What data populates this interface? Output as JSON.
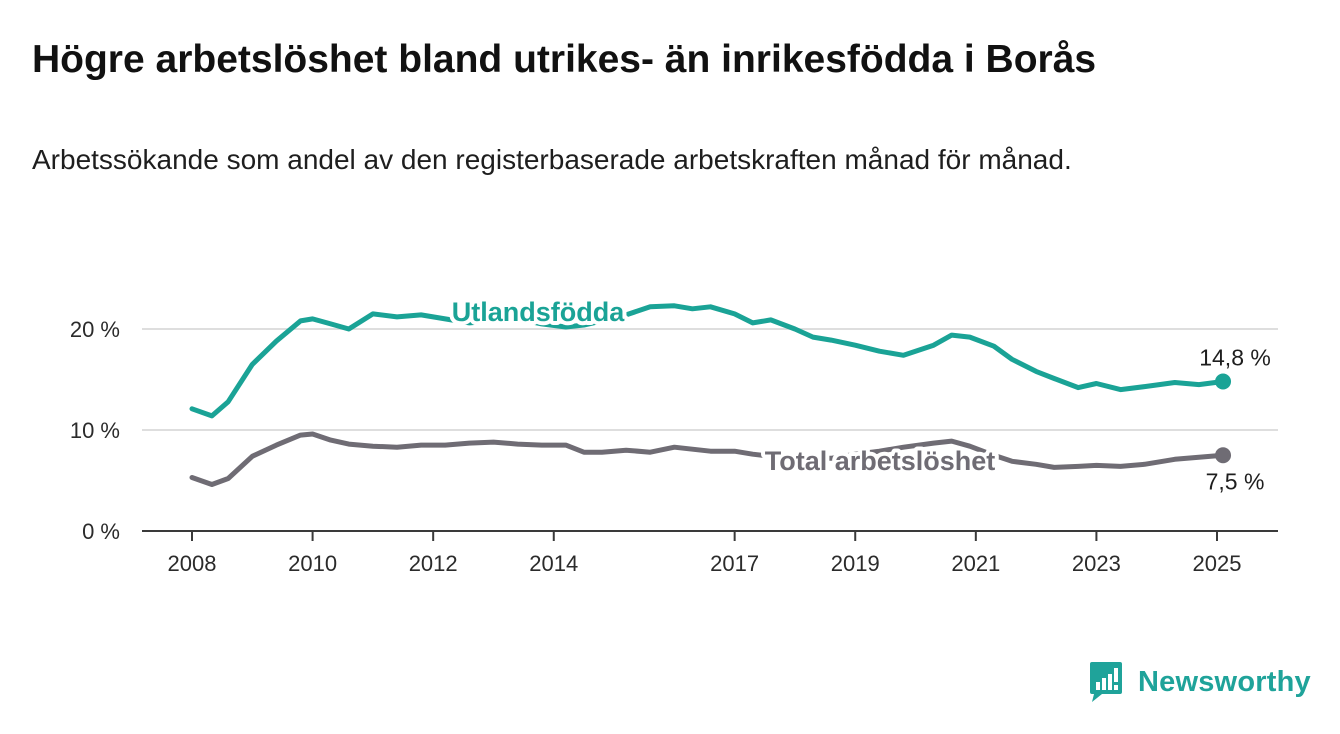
{
  "header": {
    "title": "Högre arbetslöshet bland utrikes- än inrikesfödda i Borås",
    "subtitle": "Arbetssökande som andel av den registerbaserade arbetskraften månad för månad."
  },
  "brand": {
    "name": "Newsworthy",
    "icon": "newsworthy-logo-icon",
    "color": "#1fa39a"
  },
  "chart_data": {
    "type": "line",
    "xlim": [
      2008,
      2025.5
    ],
    "ylim": [
      0,
      20
    ],
    "xticks": [
      2008,
      2010,
      2012,
      2014,
      2017,
      2019,
      2021,
      2023,
      2025
    ],
    "xtick_labels": [
      "2008",
      "2010",
      "2012",
      "2014",
      "2017",
      "2019",
      "2021",
      "2023",
      "2025"
    ],
    "yticks": [
      0,
      10,
      20
    ],
    "ytick_labels": [
      "0 %",
      "10 %",
      "20 %"
    ],
    "grid": "horizontal",
    "series": [
      {
        "name": "Utlandsfödda",
        "color": "#1aa396",
        "end_label": "14,8 %",
        "x": [
          2008,
          2008.33,
          2008.6,
          2009,
          2009.4,
          2009.8,
          2010,
          2010.3,
          2010.6,
          2011,
          2011.4,
          2011.8,
          2012.2,
          2012.6,
          2013,
          2013.4,
          2013.8,
          2014.2,
          2014.5,
          2014.8,
          2015.2,
          2015.6,
          2016,
          2016.3,
          2016.6,
          2017,
          2017.3,
          2017.6,
          2018,
          2018.3,
          2018.6,
          2019,
          2019.4,
          2019.8,
          2020.3,
          2020.6,
          2020.9,
          2021.3,
          2021.6,
          2022,
          2022.3,
          2022.7,
          2023,
          2023.4,
          2023.8,
          2024.3,
          2024.7,
          2025.1
        ],
        "y": [
          12.1,
          11.4,
          12.8,
          16.5,
          18.8,
          20.8,
          21.0,
          20.5,
          20.0,
          21.5,
          21.2,
          21.4,
          21.0,
          20.6,
          20.8,
          21.0,
          20.5,
          20.2,
          20.4,
          20.8,
          21.4,
          22.2,
          22.3,
          22.0,
          22.2,
          21.5,
          20.6,
          20.9,
          20.0,
          19.2,
          18.9,
          18.4,
          17.8,
          17.4,
          18.4,
          19.4,
          19.2,
          18.3,
          17.0,
          15.8,
          15.1,
          14.2,
          14.6,
          14.0,
          14.3,
          14.7,
          14.5,
          14.8
        ]
      },
      {
        "name": "Total arbetslöshet",
        "color": "#6f6c74",
        "end_label": "7,5 %",
        "x": [
          2008,
          2008.33,
          2008.6,
          2009,
          2009.4,
          2009.8,
          2010,
          2010.3,
          2010.6,
          2011,
          2011.4,
          2011.8,
          2012.2,
          2012.6,
          2013,
          2013.4,
          2013.8,
          2014.2,
          2014.5,
          2014.8,
          2015.2,
          2015.6,
          2016,
          2016.3,
          2016.6,
          2017,
          2017.3,
          2017.6,
          2018,
          2018.3,
          2018.6,
          2019,
          2019.4,
          2019.8,
          2020.3,
          2020.6,
          2020.9,
          2021.3,
          2021.6,
          2022,
          2022.3,
          2022.7,
          2023,
          2023.4,
          2023.8,
          2024.3,
          2024.7,
          2025.1
        ],
        "y": [
          5.3,
          4.6,
          5.2,
          7.4,
          8.5,
          9.5,
          9.6,
          9.0,
          8.6,
          8.4,
          8.3,
          8.5,
          8.5,
          8.7,
          8.8,
          8.6,
          8.5,
          8.5,
          7.8,
          7.8,
          8.0,
          7.8,
          8.3,
          8.1,
          7.9,
          7.9,
          7.6,
          7.4,
          7.3,
          7.2,
          7.2,
          7.6,
          7.9,
          8.3,
          8.7,
          8.9,
          8.4,
          7.5,
          6.9,
          6.6,
          6.3,
          6.4,
          6.5,
          6.4,
          6.6,
          7.1,
          7.3,
          7.5
        ]
      }
    ]
  }
}
